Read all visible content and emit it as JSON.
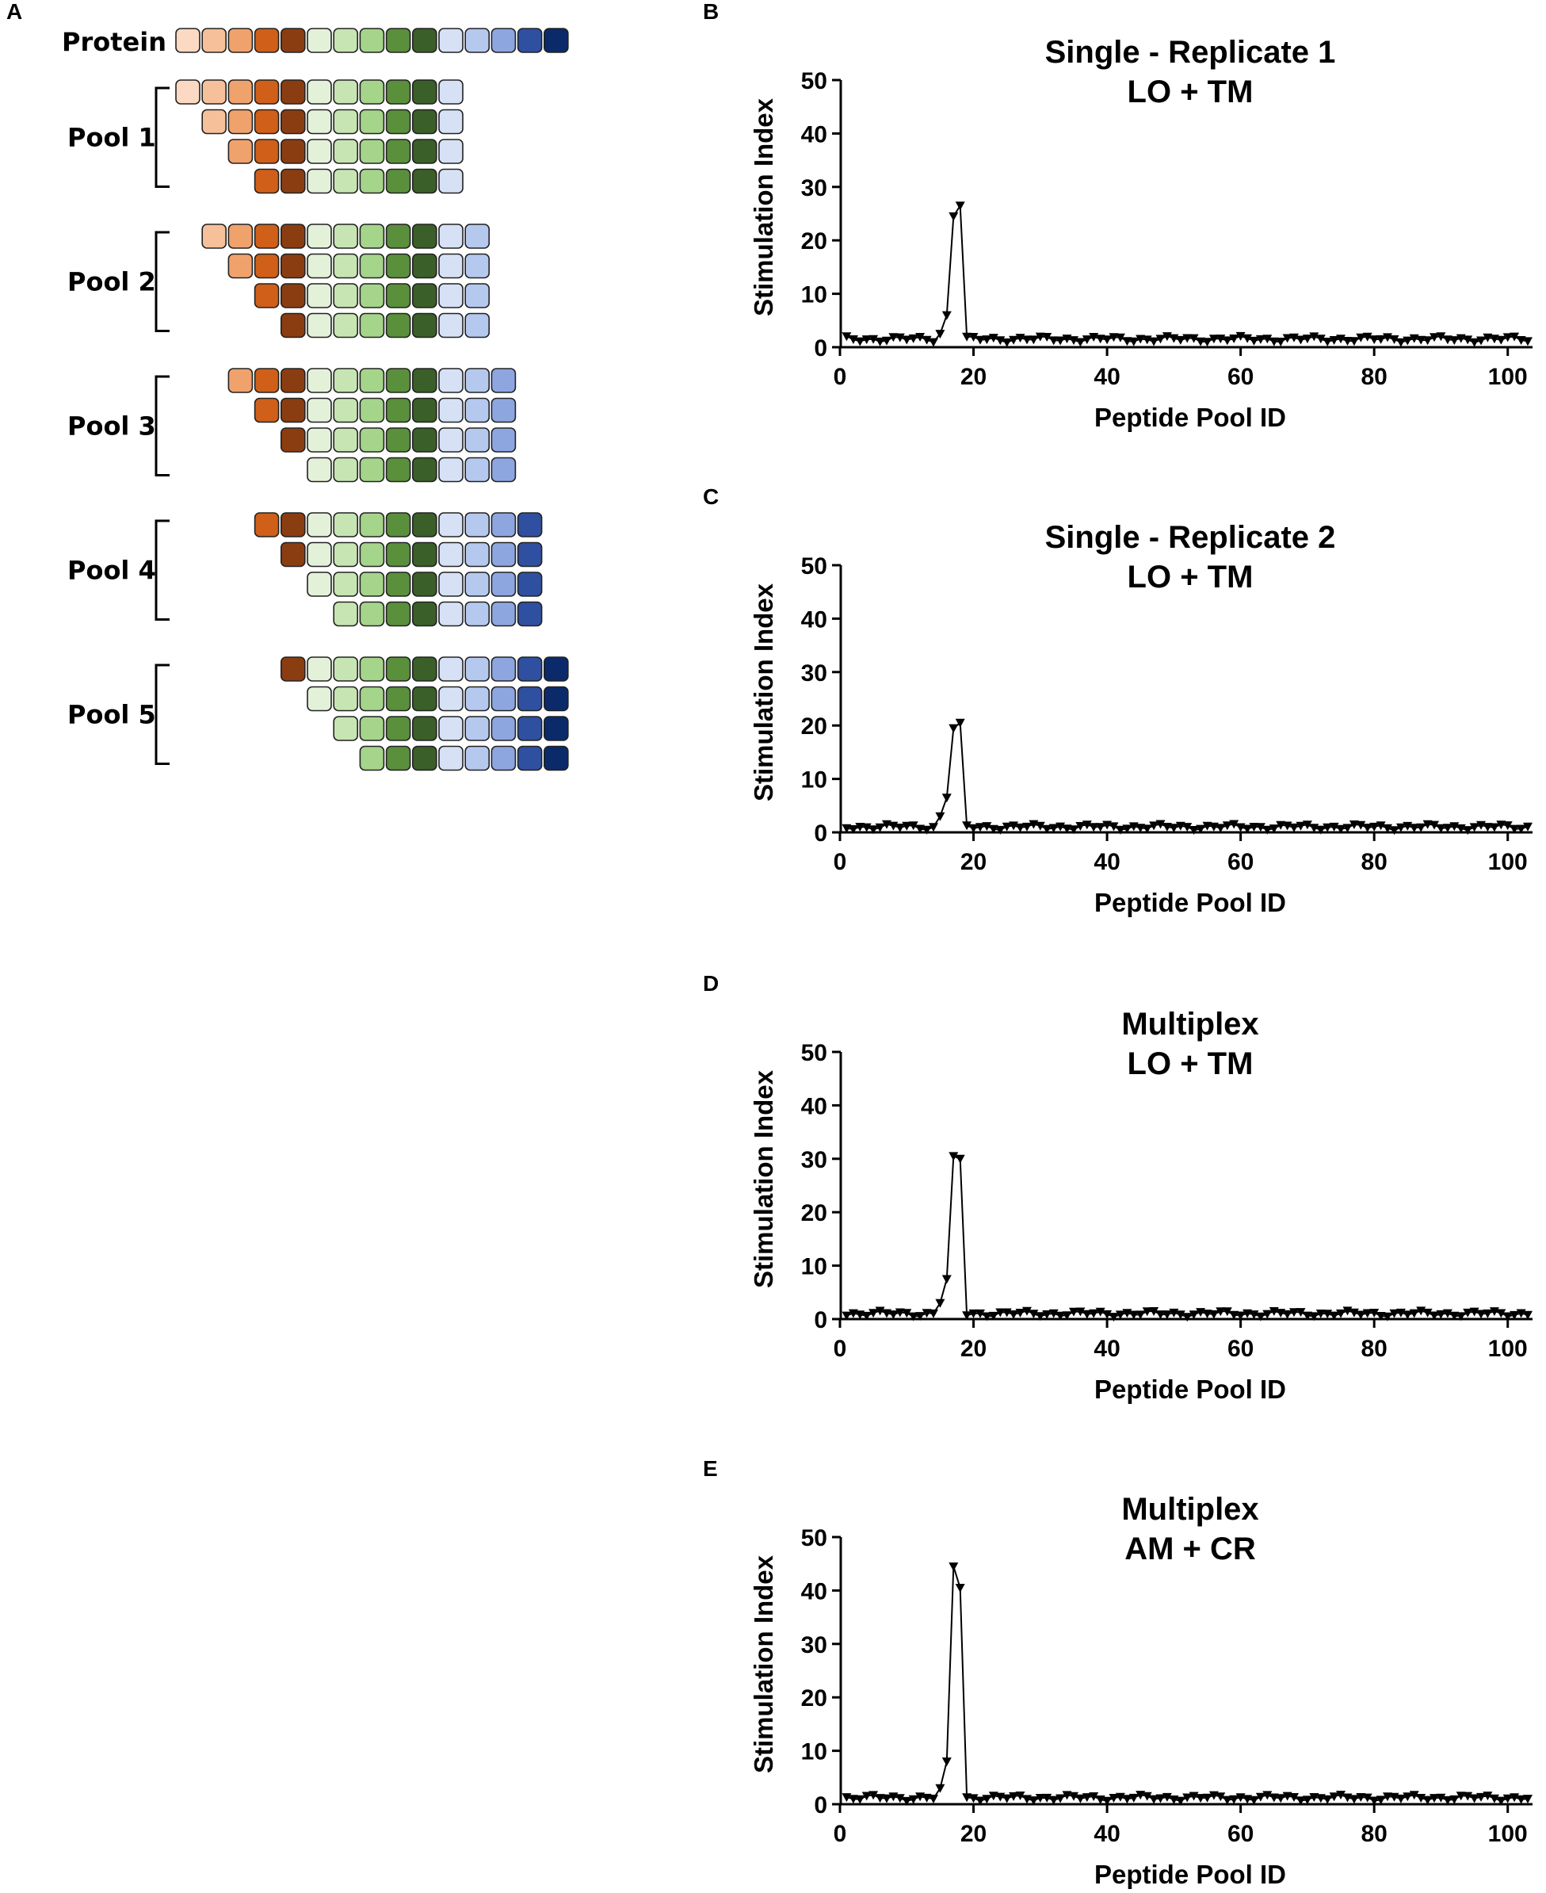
{
  "figure": {
    "panel_letters": [
      "A",
      "B",
      "C",
      "D",
      "E"
    ],
    "schematic": {
      "protein_label": "Protein",
      "protein_colors": [
        "#fbd9c2",
        "#f6c09a",
        "#f0a26d",
        "#cf5f19",
        "#8b3d12",
        "#e3f1d8",
        "#c7e5b2",
        "#a5d48b",
        "#5a8f3c",
        "#3a5f28",
        "#d6e1f5",
        "#b5c8ee",
        "#8ea6e0",
        "#2f4fa1",
        "#0a2a6a"
      ],
      "pools": [
        {
          "label": "Pool 1",
          "rows": [
            [
              0,
              10
            ],
            [
              1,
              10
            ],
            [
              2,
              10
            ],
            [
              3,
              10
            ]
          ]
        },
        {
          "label": "Pool 2",
          "rows": [
            [
              1,
              11
            ],
            [
              2,
              11
            ],
            [
              3,
              11
            ],
            [
              4,
              11
            ]
          ]
        },
        {
          "label": "Pool 3",
          "rows": [
            [
              2,
              12
            ],
            [
              3,
              12
            ],
            [
              4,
              12
            ],
            [
              5,
              12
            ]
          ]
        },
        {
          "label": "Pool 4",
          "rows": [
            [
              3,
              13
            ],
            [
              4,
              13
            ],
            [
              5,
              13
            ],
            [
              6,
              13
            ]
          ]
        },
        {
          "label": "Pool 5",
          "rows": [
            [
              4,
              14
            ],
            [
              5,
              14
            ],
            [
              6,
              14
            ],
            [
              7,
              14
            ]
          ]
        }
      ]
    }
  },
  "chart_data": [
    {
      "type": "line",
      "panel": "B",
      "title": [
        "Single - Replicate 1",
        "LO + TM"
      ],
      "xlabel": "Peptide Pool ID",
      "ylabel": "Stimulation Index",
      "xlim": [
        0,
        103
      ],
      "ylim": [
        0,
        50
      ],
      "xticks": [
        "0",
        "20",
        "40",
        "60",
        "80",
        "100"
      ],
      "yticks": [
        "0",
        "10",
        "20",
        "30",
        "40",
        "50"
      ],
      "marker": "down-triangle",
      "peak": {
        "x": [
          15,
          16,
          17,
          18
        ],
        "y": [
          2.5,
          6,
          24.5,
          26.5
        ]
      },
      "baseline": 1.5
    },
    {
      "type": "line",
      "panel": "C",
      "title": [
        "Single - Replicate 2",
        "LO + TM"
      ],
      "xlabel": "Peptide Pool ID",
      "ylabel": "Stimulation Index",
      "xlim": [
        0,
        103
      ],
      "ylim": [
        0,
        50
      ],
      "xticks": [
        "0",
        "20",
        "40",
        "60",
        "80",
        "100"
      ],
      "yticks": [
        "0",
        "10",
        "20",
        "30",
        "40",
        "50"
      ],
      "marker": "down-triangle",
      "peak": {
        "x": [
          15,
          16,
          17,
          18
        ],
        "y": [
          3,
          6.5,
          19.5,
          20.5
        ]
      },
      "baseline": 1.0
    },
    {
      "type": "line",
      "panel": "D",
      "title": [
        "Multiplex",
        "LO + TM"
      ],
      "xlabel": "Peptide Pool ID",
      "ylabel": "Stimulation Index",
      "xlim": [
        0,
        103
      ],
      "ylim": [
        0,
        50
      ],
      "xticks": [
        "0",
        "20",
        "40",
        "60",
        "80",
        "100"
      ],
      "yticks": [
        "0",
        "10",
        "20",
        "30",
        "40",
        "50"
      ],
      "marker": "down-triangle",
      "peak": {
        "x": [
          15,
          16,
          17,
          18
        ],
        "y": [
          3,
          7.5,
          30.5,
          30
        ]
      },
      "baseline": 1.0
    },
    {
      "type": "line",
      "panel": "E",
      "title": [
        "Multiplex",
        "AM + CR"
      ],
      "xlabel": "Peptide Pool ID",
      "ylabel": "Stimulation Index",
      "xlim": [
        0,
        103
      ],
      "ylim": [
        0,
        50
      ],
      "xticks": [
        "0",
        "20",
        "40",
        "60",
        "80",
        "100"
      ],
      "yticks": [
        "0",
        "10",
        "20",
        "30",
        "40",
        "50"
      ],
      "marker": "down-triangle",
      "peak": {
        "x": [
          15,
          16,
          17,
          18
        ],
        "y": [
          3,
          8,
          44.5,
          40.5
        ]
      },
      "baseline": 1.2
    }
  ]
}
